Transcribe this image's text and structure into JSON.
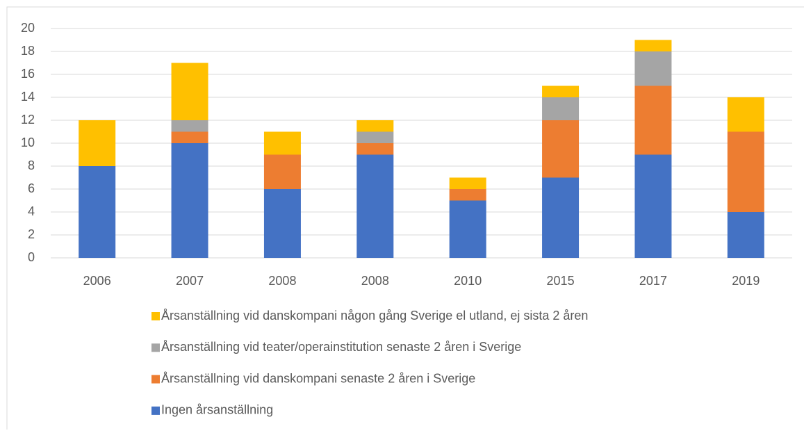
{
  "chart_data": {
    "type": "bar",
    "stacked": true,
    "categories": [
      "2006",
      "2007",
      "2008",
      "2008",
      "2010",
      "2015",
      "2017",
      "2019"
    ],
    "series": [
      {
        "name": "Ingen årsanställning",
        "color": "#4472c4",
        "values": [
          8,
          10,
          6,
          9,
          5,
          7,
          9,
          4
        ]
      },
      {
        "name": "Årsanställning vid danskompani  senaste 2 åren i Sverige",
        "color": "#ed7d31",
        "values": [
          0,
          1,
          3,
          1,
          1,
          5,
          6,
          7
        ]
      },
      {
        "name": "Årsanställning vid teater/operainstitution senaste 2 åren i Sverige",
        "color": "#a5a5a5",
        "values": [
          0,
          1,
          0,
          1,
          0,
          2,
          3,
          0
        ]
      },
      {
        "name": "Årsanställning vid danskompani någon gång Sverige el utland, ej sista 2 åren",
        "color": "#ffc000",
        "values": [
          4,
          5,
          2,
          1,
          1,
          1,
          1,
          3
        ]
      }
    ],
    "ylim": [
      0,
      20
    ],
    "yticks": [
      0,
      2,
      4,
      6,
      8,
      10,
      12,
      14,
      16,
      18,
      20
    ],
    "grid": true,
    "legend": "bottom"
  }
}
